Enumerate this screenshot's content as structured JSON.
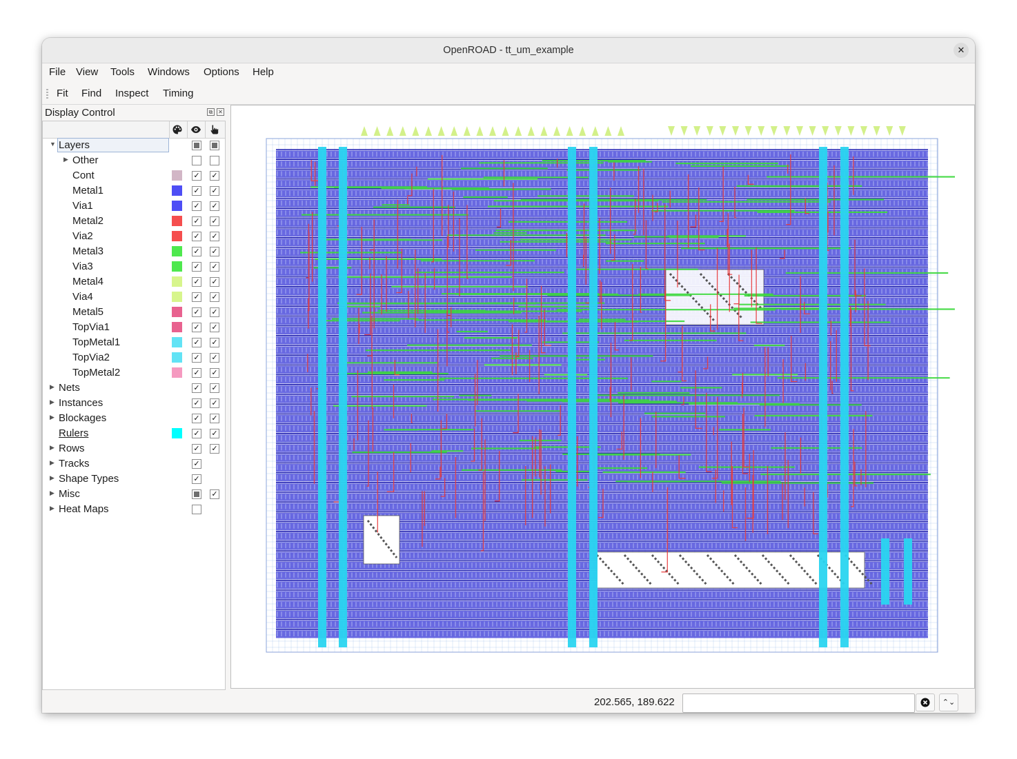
{
  "window": {
    "title": "OpenROAD - tt_um_example"
  },
  "menubar": [
    {
      "label": "File"
    },
    {
      "label": "View"
    },
    {
      "label": "Tools"
    },
    {
      "label": "Windows"
    },
    {
      "label": "Options"
    },
    {
      "label": "Help"
    }
  ],
  "toolbar": [
    {
      "label": "Fit"
    },
    {
      "label": "Find"
    },
    {
      "label": "Inspect"
    },
    {
      "label": "Timing"
    }
  ],
  "display_control": {
    "title": "Display Control",
    "header_icons": [
      "palette-icon",
      "eye-icon",
      "pointer-icon"
    ],
    "rows": [
      {
        "label": "Layers",
        "indent": 0,
        "arrow": "down",
        "color": "",
        "visible": "partial",
        "selectable": "partial",
        "selected": true
      },
      {
        "label": "Other",
        "indent": 1,
        "arrow": "right",
        "color": "",
        "visible": "off",
        "selectable": "off"
      },
      {
        "label": "Cont",
        "indent": 1,
        "arrow": "",
        "color": "#d2b6c6",
        "visible": "on",
        "selectable": "on"
      },
      {
        "label": "Metal1",
        "indent": 1,
        "arrow": "",
        "color": "#4e4ef5",
        "visible": "on",
        "selectable": "on"
      },
      {
        "label": "Via1",
        "indent": 1,
        "arrow": "",
        "color": "#4e4ef5",
        "visible": "on",
        "selectable": "on"
      },
      {
        "label": "Metal2",
        "indent": 1,
        "arrow": "",
        "color": "#f54e4e",
        "visible": "on",
        "selectable": "on"
      },
      {
        "label": "Via2",
        "indent": 1,
        "arrow": "",
        "color": "#f54e4e",
        "visible": "on",
        "selectable": "on"
      },
      {
        "label": "Metal3",
        "indent": 1,
        "arrow": "",
        "color": "#4ee84e",
        "visible": "on",
        "selectable": "on"
      },
      {
        "label": "Via3",
        "indent": 1,
        "arrow": "",
        "color": "#4ee84e",
        "visible": "on",
        "selectable": "on"
      },
      {
        "label": "Metal4",
        "indent": 1,
        "arrow": "",
        "color": "#d7f58c",
        "visible": "on",
        "selectable": "on"
      },
      {
        "label": "Via4",
        "indent": 1,
        "arrow": "",
        "color": "#d7f58c",
        "visible": "on",
        "selectable": "on"
      },
      {
        "label": "Metal5",
        "indent": 1,
        "arrow": "",
        "color": "#e8628f",
        "visible": "on",
        "selectable": "on"
      },
      {
        "label": "TopVia1",
        "indent": 1,
        "arrow": "",
        "color": "#e8628f",
        "visible": "on",
        "selectable": "on"
      },
      {
        "label": "TopMetal1",
        "indent": 1,
        "arrow": "",
        "color": "#62e3f5",
        "visible": "on",
        "selectable": "on"
      },
      {
        "label": "TopVia2",
        "indent": 1,
        "arrow": "",
        "color": "#62e3f5",
        "visible": "on",
        "selectable": "on"
      },
      {
        "label": "TopMetal2",
        "indent": 1,
        "arrow": "",
        "color": "#f59ac0",
        "visible": "on",
        "selectable": "on"
      },
      {
        "label": "Nets",
        "indent": 0,
        "arrow": "right",
        "color": "",
        "visible": "on",
        "selectable": "on"
      },
      {
        "label": "Instances",
        "indent": 0,
        "arrow": "right",
        "color": "",
        "visible": "on",
        "selectable": "on"
      },
      {
        "label": "Blockages",
        "indent": 0,
        "arrow": "right",
        "color": "",
        "visible": "on",
        "selectable": "on"
      },
      {
        "label": "Rulers",
        "indent": 0,
        "arrow": "",
        "color": "#00ffff",
        "visible": "on",
        "selectable": "on",
        "underline": true
      },
      {
        "label": "Rows",
        "indent": 0,
        "arrow": "right",
        "color": "",
        "visible": "on",
        "selectable": "on"
      },
      {
        "label": "Tracks",
        "indent": 0,
        "arrow": "right",
        "color": "",
        "visible": "on",
        "selectable": "none"
      },
      {
        "label": "Shape Types",
        "indent": 0,
        "arrow": "right",
        "color": "",
        "visible": "on",
        "selectable": "none"
      },
      {
        "label": "Misc",
        "indent": 0,
        "arrow": "right",
        "color": "",
        "visible": "partial",
        "selectable": "on"
      },
      {
        "label": "Heat Maps",
        "indent": 0,
        "arrow": "right",
        "color": "",
        "visible": "off",
        "selectable": "none"
      }
    ]
  },
  "status": {
    "coordinates": "202.565, 189.622",
    "command_value": ""
  },
  "layout_colors": {
    "metal1": "#3f3fd8",
    "metal2": "#e83a3a",
    "metal3": "#3bd83b",
    "metal4": "#d3f08a",
    "topmetal1": "#2ad5f0",
    "tracks": "#f08bb8",
    "grid": "#8fb6e8"
  }
}
